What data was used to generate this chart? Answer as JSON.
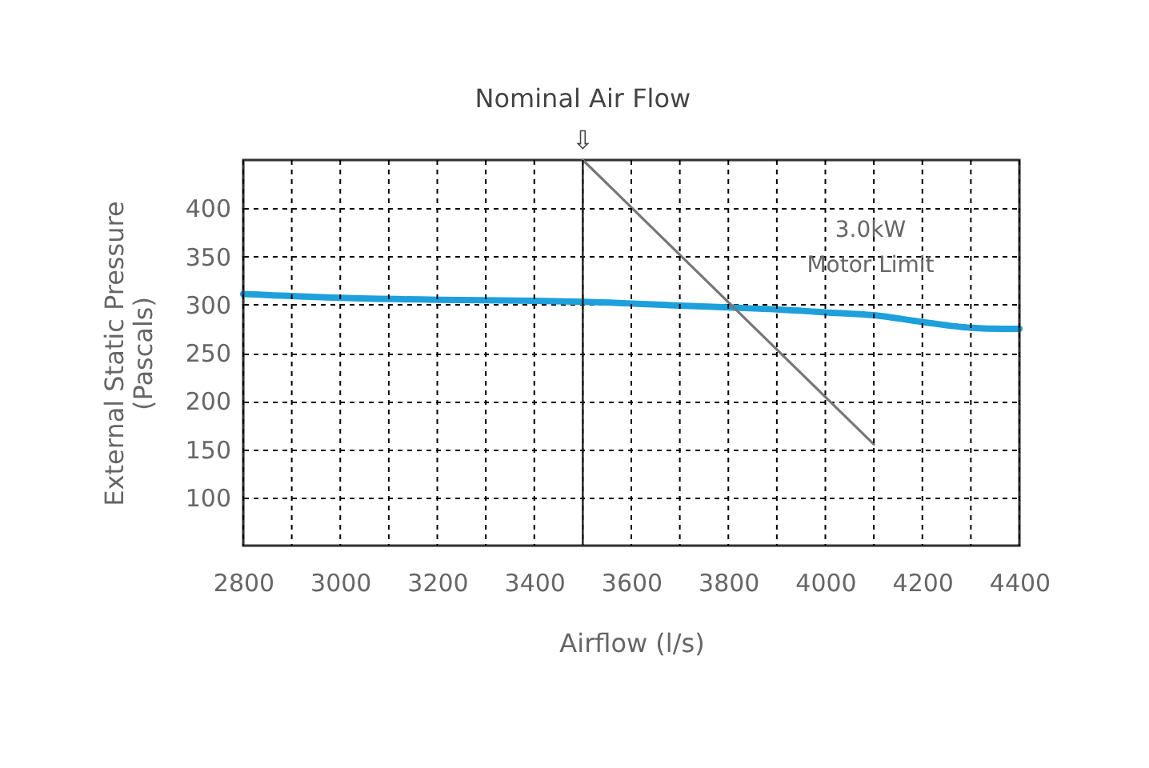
{
  "chart_data": {
    "type": "line",
    "xlabel": "Airflow (l/s)",
    "ylabel": "External Static Pressure\n(Pascals)",
    "xlim": [
      2800,
      4400
    ],
    "xticks": [
      2800,
      {
        "value": 2900,
        "label": null
      },
      3000,
      {
        "value": 3100,
        "label": null
      },
      3200,
      {
        "value": 3300,
        "label": null
      },
      3400,
      {
        "value": 3500,
        "label": null
      },
      3600,
      {
        "value": 3700,
        "label": null
      },
      3800,
      {
        "value": 3900,
        "label": null
      },
      4000,
      {
        "value": 4100,
        "label": null
      },
      4200,
      {
        "value": 4300,
        "label": null
      },
      4400
    ],
    "ylim": [
      50,
      450
    ],
    "yticks": [
      100,
      150,
      200,
      250,
      300,
      350,
      400
    ],
    "grid": true,
    "legend": false,
    "marker": "none",
    "line_style": "solid",
    "series": [
      {
        "color": "#1ea0dc",
        "x": [
          2800,
          3000,
          3200,
          3400,
          3500,
          3700,
          3800,
          3900,
          4000,
          4100,
          4200,
          4300,
          4365,
          4400
        ],
        "values": [
          311,
          307,
          305,
          304,
          303,
          299,
          297,
          295,
          292,
          289,
          282,
          276,
          275,
          275
        ]
      },
      {
        "color": "#777777",
        "x": [
          3500,
          4100
        ],
        "values": [
          450,
          155
        ]
      }
    ],
    "ref_lines": [
      {
        "axis": "x",
        "value": 3500,
        "label": "Nominal Air Flow\n⇩",
        "color": "#222222"
      }
    ],
    "annotations": [
      "3.0kW\nMotor Limit"
    ]
  }
}
